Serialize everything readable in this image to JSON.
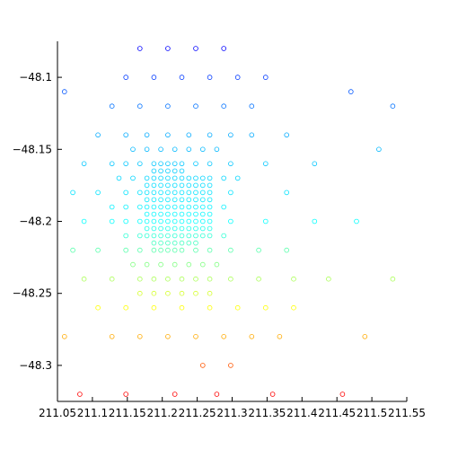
{
  "chart_data": {
    "type": "scatter",
    "title": "",
    "xlabel": "",
    "ylabel": "",
    "xlim": [
      211.05,
      211.55
    ],
    "ylim": [
      -48.325,
      -48.075
    ],
    "grid": false,
    "xticks": [
      211.05,
      211.1,
      211.15,
      211.2,
      211.25,
      211.3,
      211.35,
      211.4,
      211.45,
      211.5,
      211.55
    ],
    "xtick_labels": [
      "211.05",
      "211.1",
      "211.15",
      "211.2",
      "211.25",
      "211.3",
      "211.35",
      "211.4",
      "211.45",
      "211.5",
      "211.55"
    ],
    "yticks": [
      -48.3,
      -48.25,
      -48.2,
      -48.15,
      -48.1
    ],
    "ytick_labels": [
      "−48.3",
      "−48.25",
      "−48.2",
      "−48.15",
      "−48.1"
    ],
    "marker": "open-circle",
    "colormap": [
      "#0000ff",
      "#00aaff",
      "#00ffff",
      "#ffff00",
      "#ff0000"
    ],
    "points": [
      [
        211.168,
        -48.08
      ],
      [
        211.208,
        -48.08
      ],
      [
        211.248,
        -48.08
      ],
      [
        211.288,
        -48.08
      ],
      [
        211.148,
        -48.1
      ],
      [
        211.188,
        -48.1
      ],
      [
        211.228,
        -48.1
      ],
      [
        211.268,
        -48.1
      ],
      [
        211.308,
        -48.1
      ],
      [
        211.348,
        -48.1
      ],
      [
        211.06,
        -48.11
      ],
      [
        211.47,
        -48.11
      ],
      [
        211.128,
        -48.12
      ],
      [
        211.168,
        -48.12
      ],
      [
        211.208,
        -48.12
      ],
      [
        211.248,
        -48.12
      ],
      [
        211.288,
        -48.12
      ],
      [
        211.328,
        -48.12
      ],
      [
        211.53,
        -48.12
      ],
      [
        211.108,
        -48.14
      ],
      [
        211.148,
        -48.14
      ],
      [
        211.178,
        -48.14
      ],
      [
        211.208,
        -48.14
      ],
      [
        211.238,
        -48.14
      ],
      [
        211.268,
        -48.14
      ],
      [
        211.298,
        -48.14
      ],
      [
        211.328,
        -48.14
      ],
      [
        211.378,
        -48.14
      ],
      [
        211.158,
        -48.15
      ],
      [
        211.178,
        -48.15
      ],
      [
        211.198,
        -48.15
      ],
      [
        211.218,
        -48.15
      ],
      [
        211.238,
        -48.15
      ],
      [
        211.258,
        -48.15
      ],
      [
        211.278,
        -48.15
      ],
      [
        211.51,
        -48.15
      ],
      [
        211.088,
        -48.16
      ],
      [
        211.128,
        -48.16
      ],
      [
        211.148,
        -48.16
      ],
      [
        211.168,
        -48.16
      ],
      [
        211.188,
        -48.16
      ],
      [
        211.198,
        -48.16
      ],
      [
        211.208,
        -48.16
      ],
      [
        211.218,
        -48.16
      ],
      [
        211.228,
        -48.16
      ],
      [
        211.248,
        -48.16
      ],
      [
        211.268,
        -48.16
      ],
      [
        211.298,
        -48.16
      ],
      [
        211.348,
        -48.16
      ],
      [
        211.418,
        -48.16
      ],
      [
        211.188,
        -48.165
      ],
      [
        211.198,
        -48.165
      ],
      [
        211.208,
        -48.165
      ],
      [
        211.218,
        -48.165
      ],
      [
        211.228,
        -48.165
      ],
      [
        211.138,
        -48.17
      ],
      [
        211.158,
        -48.17
      ],
      [
        211.178,
        -48.17
      ],
      [
        211.188,
        -48.17
      ],
      [
        211.198,
        -48.17
      ],
      [
        211.208,
        -48.17
      ],
      [
        211.218,
        -48.17
      ],
      [
        211.228,
        -48.17
      ],
      [
        211.238,
        -48.17
      ],
      [
        211.248,
        -48.17
      ],
      [
        211.258,
        -48.17
      ],
      [
        211.268,
        -48.17
      ],
      [
        211.288,
        -48.17
      ],
      [
        211.308,
        -48.17
      ],
      [
        211.178,
        -48.175
      ],
      [
        211.188,
        -48.175
      ],
      [
        211.198,
        -48.175
      ],
      [
        211.208,
        -48.175
      ],
      [
        211.218,
        -48.175
      ],
      [
        211.228,
        -48.175
      ],
      [
        211.238,
        -48.175
      ],
      [
        211.248,
        -48.175
      ],
      [
        211.258,
        -48.175
      ],
      [
        211.268,
        -48.175
      ],
      [
        211.072,
        -48.18
      ],
      [
        211.108,
        -48.18
      ],
      [
        211.148,
        -48.18
      ],
      [
        211.168,
        -48.18
      ],
      [
        211.178,
        -48.18
      ],
      [
        211.188,
        -48.18
      ],
      [
        211.198,
        -48.18
      ],
      [
        211.208,
        -48.18
      ],
      [
        211.218,
        -48.18
      ],
      [
        211.228,
        -48.18
      ],
      [
        211.238,
        -48.18
      ],
      [
        211.248,
        -48.18
      ],
      [
        211.258,
        -48.18
      ],
      [
        211.268,
        -48.18
      ],
      [
        211.298,
        -48.18
      ],
      [
        211.378,
        -48.18
      ],
      [
        211.178,
        -48.185
      ],
      [
        211.188,
        -48.185
      ],
      [
        211.198,
        -48.185
      ],
      [
        211.208,
        -48.185
      ],
      [
        211.218,
        -48.185
      ],
      [
        211.228,
        -48.185
      ],
      [
        211.238,
        -48.185
      ],
      [
        211.248,
        -48.185
      ],
      [
        211.258,
        -48.185
      ],
      [
        211.268,
        -48.185
      ],
      [
        211.128,
        -48.19
      ],
      [
        211.148,
        -48.19
      ],
      [
        211.168,
        -48.19
      ],
      [
        211.178,
        -48.19
      ],
      [
        211.188,
        -48.19
      ],
      [
        211.198,
        -48.19
      ],
      [
        211.208,
        -48.19
      ],
      [
        211.218,
        -48.19
      ],
      [
        211.228,
        -48.19
      ],
      [
        211.238,
        -48.19
      ],
      [
        211.248,
        -48.19
      ],
      [
        211.258,
        -48.19
      ],
      [
        211.268,
        -48.19
      ],
      [
        211.288,
        -48.19
      ],
      [
        211.178,
        -48.195
      ],
      [
        211.188,
        -48.195
      ],
      [
        211.198,
        -48.195
      ],
      [
        211.208,
        -48.195
      ],
      [
        211.218,
        -48.195
      ],
      [
        211.228,
        -48.195
      ],
      [
        211.238,
        -48.195
      ],
      [
        211.248,
        -48.195
      ],
      [
        211.258,
        -48.195
      ],
      [
        211.268,
        -48.195
      ],
      [
        211.088,
        -48.2
      ],
      [
        211.128,
        -48.2
      ],
      [
        211.148,
        -48.2
      ],
      [
        211.168,
        -48.2
      ],
      [
        211.178,
        -48.2
      ],
      [
        211.188,
        -48.2
      ],
      [
        211.198,
        -48.2
      ],
      [
        211.208,
        -48.2
      ],
      [
        211.218,
        -48.2
      ],
      [
        211.228,
        -48.2
      ],
      [
        211.238,
        -48.2
      ],
      [
        211.248,
        -48.2
      ],
      [
        211.258,
        -48.2
      ],
      [
        211.268,
        -48.2
      ],
      [
        211.298,
        -48.2
      ],
      [
        211.348,
        -48.2
      ],
      [
        211.418,
        -48.2
      ],
      [
        211.478,
        -48.2
      ],
      [
        211.178,
        -48.205
      ],
      [
        211.188,
        -48.205
      ],
      [
        211.198,
        -48.205
      ],
      [
        211.208,
        -48.205
      ],
      [
        211.218,
        -48.205
      ],
      [
        211.228,
        -48.205
      ],
      [
        211.238,
        -48.205
      ],
      [
        211.248,
        -48.205
      ],
      [
        211.258,
        -48.205
      ],
      [
        211.268,
        -48.205
      ],
      [
        211.148,
        -48.21
      ],
      [
        211.168,
        -48.21
      ],
      [
        211.178,
        -48.21
      ],
      [
        211.188,
        -48.21
      ],
      [
        211.198,
        -48.21
      ],
      [
        211.208,
        -48.21
      ],
      [
        211.218,
        -48.21
      ],
      [
        211.228,
        -48.21
      ],
      [
        211.238,
        -48.21
      ],
      [
        211.248,
        -48.21
      ],
      [
        211.258,
        -48.21
      ],
      [
        211.268,
        -48.21
      ],
      [
        211.288,
        -48.21
      ],
      [
        211.188,
        -48.215
      ],
      [
        211.198,
        -48.215
      ],
      [
        211.208,
        -48.215
      ],
      [
        211.218,
        -48.215
      ],
      [
        211.228,
        -48.215
      ],
      [
        211.238,
        -48.215
      ],
      [
        211.248,
        -48.215
      ],
      [
        211.072,
        -48.22
      ],
      [
        211.108,
        -48.22
      ],
      [
        211.148,
        -48.22
      ],
      [
        211.168,
        -48.22
      ],
      [
        211.188,
        -48.22
      ],
      [
        211.198,
        -48.22
      ],
      [
        211.208,
        -48.22
      ],
      [
        211.218,
        -48.22
      ],
      [
        211.228,
        -48.22
      ],
      [
        211.248,
        -48.22
      ],
      [
        211.268,
        -48.22
      ],
      [
        211.298,
        -48.22
      ],
      [
        211.338,
        -48.22
      ],
      [
        211.378,
        -48.22
      ],
      [
        211.158,
        -48.23
      ],
      [
        211.178,
        -48.23
      ],
      [
        211.198,
        -48.23
      ],
      [
        211.218,
        -48.23
      ],
      [
        211.238,
        -48.23
      ],
      [
        211.258,
        -48.23
      ],
      [
        211.278,
        -48.23
      ],
      [
        211.088,
        -48.24
      ],
      [
        211.128,
        -48.24
      ],
      [
        211.168,
        -48.24
      ],
      [
        211.188,
        -48.24
      ],
      [
        211.208,
        -48.24
      ],
      [
        211.228,
        -48.24
      ],
      [
        211.248,
        -48.24
      ],
      [
        211.268,
        -48.24
      ],
      [
        211.298,
        -48.24
      ],
      [
        211.338,
        -48.24
      ],
      [
        211.388,
        -48.24
      ],
      [
        211.438,
        -48.24
      ],
      [
        211.53,
        -48.24
      ],
      [
        211.168,
        -48.25
      ],
      [
        211.188,
        -48.25
      ],
      [
        211.208,
        -48.25
      ],
      [
        211.228,
        -48.25
      ],
      [
        211.248,
        -48.25
      ],
      [
        211.268,
        -48.25
      ],
      [
        211.108,
        -48.26
      ],
      [
        211.148,
        -48.26
      ],
      [
        211.188,
        -48.26
      ],
      [
        211.228,
        -48.26
      ],
      [
        211.268,
        -48.26
      ],
      [
        211.308,
        -48.26
      ],
      [
        211.348,
        -48.26
      ],
      [
        211.388,
        -48.26
      ],
      [
        211.06,
        -48.28
      ],
      [
        211.128,
        -48.28
      ],
      [
        211.168,
        -48.28
      ],
      [
        211.208,
        -48.28
      ],
      [
        211.248,
        -48.28
      ],
      [
        211.288,
        -48.28
      ],
      [
        211.328,
        -48.28
      ],
      [
        211.368,
        -48.28
      ],
      [
        211.49,
        -48.28
      ],
      [
        211.258,
        -48.3
      ],
      [
        211.298,
        -48.3
      ],
      [
        211.082,
        -48.32
      ],
      [
        211.148,
        -48.32
      ],
      [
        211.218,
        -48.32
      ],
      [
        211.278,
        -48.32
      ],
      [
        211.358,
        -48.32
      ],
      [
        211.458,
        -48.32
      ]
    ]
  }
}
